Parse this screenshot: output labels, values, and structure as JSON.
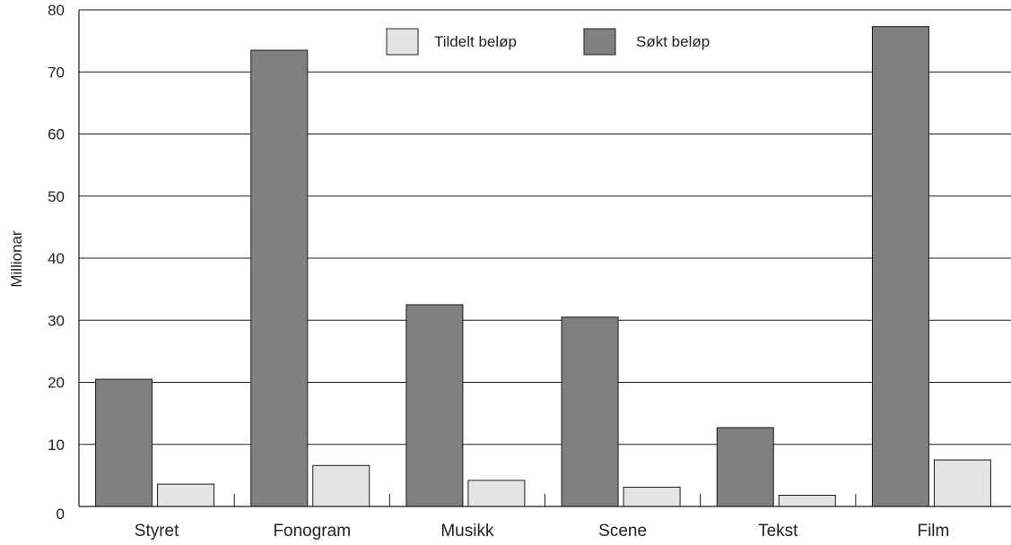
{
  "chart_data": {
    "type": "bar",
    "categories": [
      "Styret",
      "Fonogram",
      "Musikk",
      "Scene",
      "Tekst",
      "Film"
    ],
    "series": [
      {
        "name": "Søkt beløp",
        "values": [
          20.5,
          73.5,
          32.5,
          30.5,
          12.7,
          77.3
        ],
        "color": "#808083"
      },
      {
        "name": "Tildelt beløp",
        "values": [
          3.6,
          6.6,
          4.2,
          3.1,
          1.8,
          7.5
        ],
        "color": "#e3e4e6"
      }
    ],
    "xlabel": "",
    "ylabel": "Millionar",
    "ylim": [
      0,
      80
    ],
    "yticks": [
      "0",
      "10",
      "20",
      "30",
      "40",
      "50",
      "60",
      "70",
      "80"
    ],
    "grid": true,
    "legend": {
      "position": "top-center",
      "entries": [
        "Tildelt beløp",
        "Søkt beløp"
      ]
    }
  }
}
